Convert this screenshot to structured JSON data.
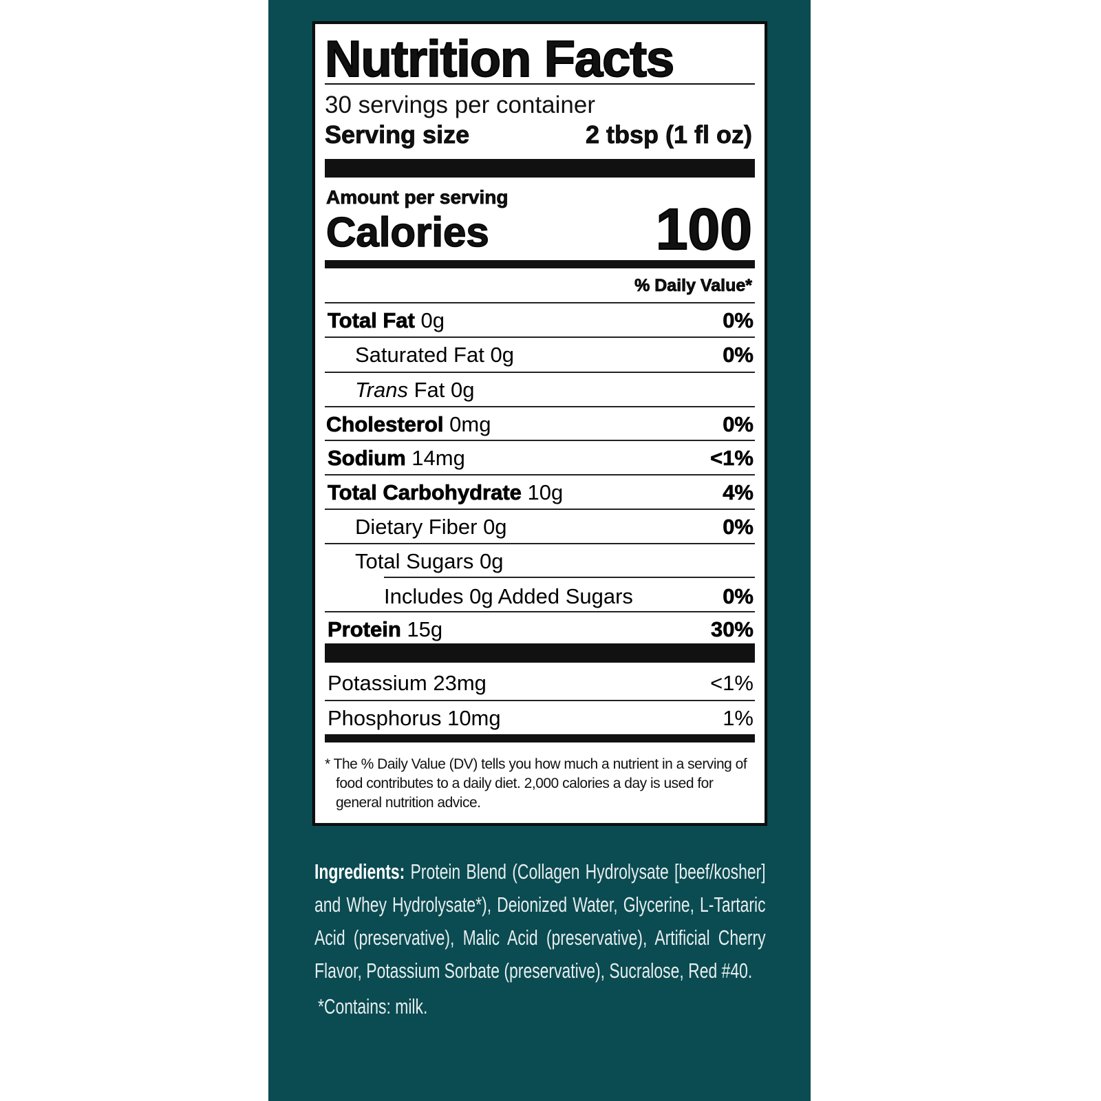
{
  "colors": {
    "background": "#0b4b52",
    "label_bg": "#ffffff",
    "text": "#111111"
  },
  "label": {
    "title": "Nutrition Facts",
    "servings": "30 servings per container",
    "serving_size_label": "Serving size",
    "serving_size_value": "2 tbsp (1 fl oz)",
    "amount_per_serving": "Amount per serving",
    "calories_label": "Calories",
    "calories_value": "100",
    "dv_header": "% Daily Value*",
    "rows": [
      {
        "name": "Total Fat",
        "amount": "0g",
        "dv": "0%"
      },
      {
        "name": "Saturated Fat",
        "amount": "0g",
        "dv": "0%"
      },
      {
        "name": "Trans",
        "name2": "Fat",
        "amount": "0g",
        "dv": ""
      },
      {
        "name": "Cholesterol",
        "amount": "0mg",
        "dv": "0%"
      },
      {
        "name": "Sodium",
        "amount": "14mg",
        "dv": "<1%"
      },
      {
        "name": "Total Carbohydrate",
        "amount": "10g",
        "dv": "4%"
      },
      {
        "name": "Dietary Fiber",
        "amount": "0g",
        "dv": "0%"
      },
      {
        "name": "Total Sugars",
        "amount": "0g",
        "dv": ""
      },
      {
        "name": "Includes 0g Added Sugars",
        "amount": "",
        "dv": "0%"
      },
      {
        "name": "Protein",
        "amount": "15g",
        "dv": "30%"
      }
    ],
    "minerals": [
      {
        "name": "Potassium",
        "amount": "23mg",
        "dv": "<1%"
      },
      {
        "name": "Phosphorus",
        "amount": "10mg",
        "dv": "1%"
      }
    ],
    "footnote": "* The % Daily Value (DV) tells you how much a nutrient in a serving of food contributes to a daily diet. 2,000 calories a day is used for general nutrition advice."
  },
  "ingredients": {
    "label": "Ingredients:",
    "text": "Protein Blend (Collagen Hydrolysate [beef/kosher] and Whey Hydrolysate*), Deionized Water, Glycerine, L-Tartaric Acid (preservative), Malic Acid (preservative), Artificial Cherry Flavor, Potassium Sorbate (preservative), Sucralose, Red #40.",
    "allergen": "*Contains: milk."
  }
}
